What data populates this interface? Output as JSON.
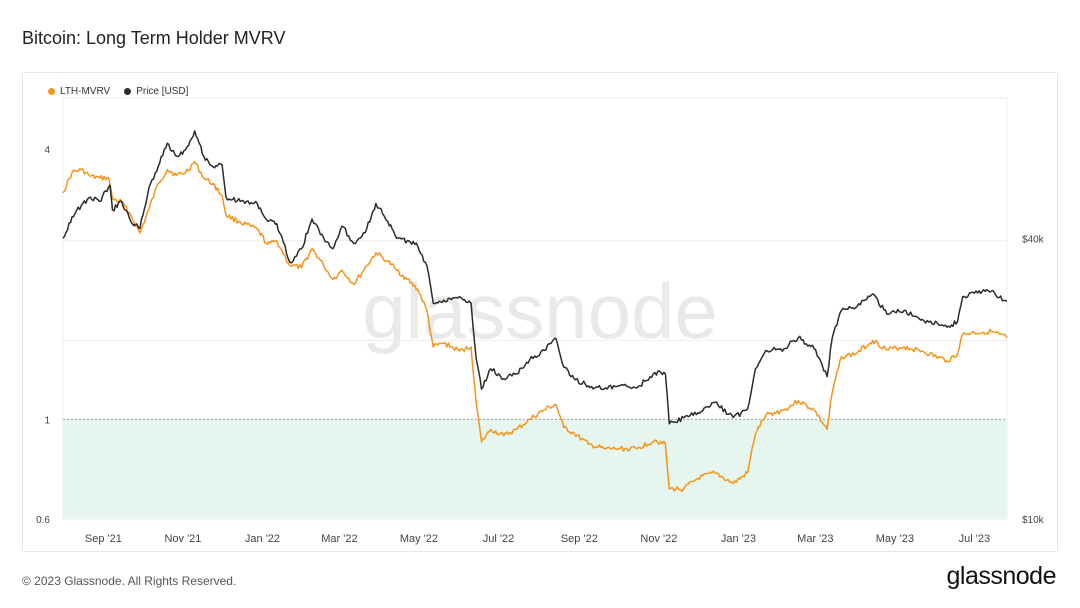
{
  "page": {
    "title": "Bitcoin: Long Term Holder MVRV",
    "footer": "© 2023 Glassnode. All Rights Reserved.",
    "brand": "glassnode",
    "watermark": "glassnode"
  },
  "colors": {
    "lth_mvrv": "#f7931a",
    "price": "#2b2b2b",
    "band_fill": "#e6f6ee",
    "grid": "#eeeeee",
    "threshold": "#9aa0a6"
  },
  "chart_data": {
    "type": "line",
    "title": "Bitcoin: Long Term Holder MVRV",
    "x_range": [
      "2021-08-01",
      "2023-07-26"
    ],
    "x_ticks": [
      "Sep '21",
      "Nov '21",
      "Jan '22",
      "Mar '22",
      "May '22",
      "Jul '22",
      "Sep '22",
      "Nov '22",
      "Jan '23",
      "Mar '23",
      "May '23",
      "Jul '23"
    ],
    "y_left": {
      "scale": "log",
      "range": [
        0.6,
        5.2
      ],
      "ticks": [
        0.6,
        1,
        4
      ],
      "tick_labels": [
        "0.6",
        "1",
        "4"
      ]
    },
    "y_right": {
      "scale": "log",
      "range": [
        10000,
        80000
      ],
      "ticks": [
        10000,
        40000
      ],
      "tick_labels": [
        "$10k",
        "$40k"
      ]
    },
    "threshold": 1,
    "legend_position": "top-left",
    "grid": true,
    "series": [
      {
        "name": "LTH-MVRV",
        "axis": "left",
        "points": [
          [
            "2021-08-01",
            3.2
          ],
          [
            "2021-08-08",
            3.55
          ],
          [
            "2021-08-15",
            3.6
          ],
          [
            "2021-08-22",
            3.48
          ],
          [
            "2021-08-29",
            3.45
          ],
          [
            "2021-09-05",
            3.45
          ],
          [
            "2021-09-08",
            3.1
          ],
          [
            "2021-09-15",
            3.05
          ],
          [
            "2021-09-22",
            2.85
          ],
          [
            "2021-09-29",
            2.6
          ],
          [
            "2021-10-06",
            2.95
          ],
          [
            "2021-10-13",
            3.35
          ],
          [
            "2021-10-20",
            3.6
          ],
          [
            "2021-10-27",
            3.5
          ],
          [
            "2021-11-03",
            3.55
          ],
          [
            "2021-11-10",
            3.75
          ],
          [
            "2021-11-17",
            3.45
          ],
          [
            "2021-11-24",
            3.35
          ],
          [
            "2021-12-01",
            3.15
          ],
          [
            "2021-12-04",
            2.85
          ],
          [
            "2021-12-15",
            2.75
          ],
          [
            "2021-12-28",
            2.65
          ],
          [
            "2022-01-05",
            2.45
          ],
          [
            "2022-01-12",
            2.5
          ],
          [
            "2022-01-22",
            2.2
          ],
          [
            "2022-01-31",
            2.18
          ],
          [
            "2022-02-08",
            2.4
          ],
          [
            "2022-02-17",
            2.2
          ],
          [
            "2022-02-24",
            2.05
          ],
          [
            "2022-03-03",
            2.15
          ],
          [
            "2022-03-12",
            2.0
          ],
          [
            "2022-03-22",
            2.2
          ],
          [
            "2022-03-29",
            2.35
          ],
          [
            "2022-04-07",
            2.25
          ],
          [
            "2022-04-14",
            2.15
          ],
          [
            "2022-04-22",
            2.05
          ],
          [
            "2022-04-30",
            1.95
          ],
          [
            "2022-05-07",
            1.75
          ],
          [
            "2022-05-12",
            1.45
          ],
          [
            "2022-05-20",
            1.48
          ],
          [
            "2022-06-01",
            1.42
          ],
          [
            "2022-06-10",
            1.45
          ],
          [
            "2022-06-14",
            1.08
          ],
          [
            "2022-06-18",
            0.89
          ],
          [
            "2022-06-25",
            0.95
          ],
          [
            "2022-07-05",
            0.92
          ],
          [
            "2022-07-15",
            0.95
          ],
          [
            "2022-07-25",
            1.0
          ],
          [
            "2022-08-05",
            1.05
          ],
          [
            "2022-08-14",
            1.08
          ],
          [
            "2022-08-20",
            0.96
          ],
          [
            "2022-08-28",
            0.93
          ],
          [
            "2022-09-08",
            0.88
          ],
          [
            "2022-09-20",
            0.86
          ],
          [
            "2022-10-01",
            0.86
          ],
          [
            "2022-10-15",
            0.86
          ],
          [
            "2022-10-29",
            0.9
          ],
          [
            "2022-11-06",
            0.88
          ],
          [
            "2022-11-09",
            0.7
          ],
          [
            "2022-11-20",
            0.7
          ],
          [
            "2022-12-01",
            0.74
          ],
          [
            "2022-12-14",
            0.76
          ],
          [
            "2022-12-28",
            0.72
          ],
          [
            "2023-01-08",
            0.76
          ],
          [
            "2023-01-14",
            0.93
          ],
          [
            "2023-01-22",
            1.02
          ],
          [
            "2023-02-05",
            1.05
          ],
          [
            "2023-02-16",
            1.1
          ],
          [
            "2023-02-28",
            1.05
          ],
          [
            "2023-03-10",
            0.95
          ],
          [
            "2023-03-14",
            1.15
          ],
          [
            "2023-03-21",
            1.38
          ],
          [
            "2023-04-01",
            1.4
          ],
          [
            "2023-04-14",
            1.5
          ],
          [
            "2023-04-25",
            1.43
          ],
          [
            "2023-05-08",
            1.45
          ],
          [
            "2023-05-22",
            1.42
          ],
          [
            "2023-06-10",
            1.35
          ],
          [
            "2023-06-18",
            1.4
          ],
          [
            "2023-06-22",
            1.55
          ],
          [
            "2023-07-01",
            1.56
          ],
          [
            "2023-07-14",
            1.57
          ],
          [
            "2023-07-26",
            1.52
          ]
        ]
      },
      {
        "name": "Price [USD]",
        "axis": "right",
        "points": [
          [
            "2021-08-01",
            40000
          ],
          [
            "2021-08-08",
            44500
          ],
          [
            "2021-08-15",
            47000
          ],
          [
            "2021-08-22",
            49000
          ],
          [
            "2021-08-29",
            48000
          ],
          [
            "2021-09-06",
            52000
          ],
          [
            "2021-09-08",
            46000
          ],
          [
            "2021-09-15",
            48000
          ],
          [
            "2021-09-22",
            43500
          ],
          [
            "2021-09-29",
            42000
          ],
          [
            "2021-10-06",
            51500
          ],
          [
            "2021-10-13",
            57000
          ],
          [
            "2021-10-20",
            64000
          ],
          [
            "2021-10-27",
            60000
          ],
          [
            "2021-11-03",
            62000
          ],
          [
            "2021-11-10",
            68000
          ],
          [
            "2021-11-17",
            60000
          ],
          [
            "2021-11-24",
            57000
          ],
          [
            "2021-12-01",
            57500
          ],
          [
            "2021-12-04",
            49000
          ],
          [
            "2021-12-15",
            48000
          ],
          [
            "2021-12-28",
            47500
          ],
          [
            "2022-01-05",
            43500
          ],
          [
            "2022-01-12",
            43000
          ],
          [
            "2022-01-22",
            35500
          ],
          [
            "2022-01-31",
            38000
          ],
          [
            "2022-02-08",
            44000
          ],
          [
            "2022-02-17",
            40000
          ],
          [
            "2022-02-24",
            38000
          ],
          [
            "2022-03-03",
            42500
          ],
          [
            "2022-03-12",
            39000
          ],
          [
            "2022-03-22",
            42000
          ],
          [
            "2022-03-29",
            47500
          ],
          [
            "2022-04-07",
            43500
          ],
          [
            "2022-04-14",
            40000
          ],
          [
            "2022-04-22",
            39500
          ],
          [
            "2022-04-30",
            38500
          ],
          [
            "2022-05-07",
            35000
          ],
          [
            "2022-05-12",
            29000
          ],
          [
            "2022-05-20",
            29500
          ],
          [
            "2022-06-01",
            30000
          ],
          [
            "2022-06-10",
            29000
          ],
          [
            "2022-06-14",
            22000
          ],
          [
            "2022-06-18",
            19000
          ],
          [
            "2022-06-25",
            21000
          ],
          [
            "2022-07-05",
            20000
          ],
          [
            "2022-07-15",
            20500
          ],
          [
            "2022-07-25",
            22000
          ],
          [
            "2022-08-05",
            23000
          ],
          [
            "2022-08-14",
            24400
          ],
          [
            "2022-08-20",
            21200
          ],
          [
            "2022-08-28",
            20000
          ],
          [
            "2022-09-08",
            19300
          ],
          [
            "2022-09-20",
            19000
          ],
          [
            "2022-10-01",
            19300
          ],
          [
            "2022-10-15",
            19100
          ],
          [
            "2022-10-29",
            20600
          ],
          [
            "2022-11-06",
            20500
          ],
          [
            "2022-11-09",
            16000
          ],
          [
            "2022-11-20",
            16500
          ],
          [
            "2022-12-01",
            16900
          ],
          [
            "2022-12-14",
            17800
          ],
          [
            "2022-12-28",
            16500
          ],
          [
            "2023-01-08",
            17200
          ],
          [
            "2023-01-14",
            21000
          ],
          [
            "2023-01-22",
            23000
          ],
          [
            "2023-02-05",
            23200
          ],
          [
            "2023-02-16",
            24500
          ],
          [
            "2023-02-28",
            23200
          ],
          [
            "2023-03-10",
            20200
          ],
          [
            "2023-03-14",
            24500
          ],
          [
            "2023-03-21",
            28000
          ],
          [
            "2023-04-01",
            28400
          ],
          [
            "2023-04-14",
            30400
          ],
          [
            "2023-04-25",
            27500
          ],
          [
            "2023-05-08",
            28000
          ],
          [
            "2023-05-22",
            26800
          ],
          [
            "2023-06-10",
            25800
          ],
          [
            "2023-06-18",
            26500
          ],
          [
            "2023-06-22",
            30000
          ],
          [
            "2023-07-01",
            30500
          ],
          [
            "2023-07-14",
            30800
          ],
          [
            "2023-07-26",
            29300
          ]
        ]
      }
    ]
  }
}
